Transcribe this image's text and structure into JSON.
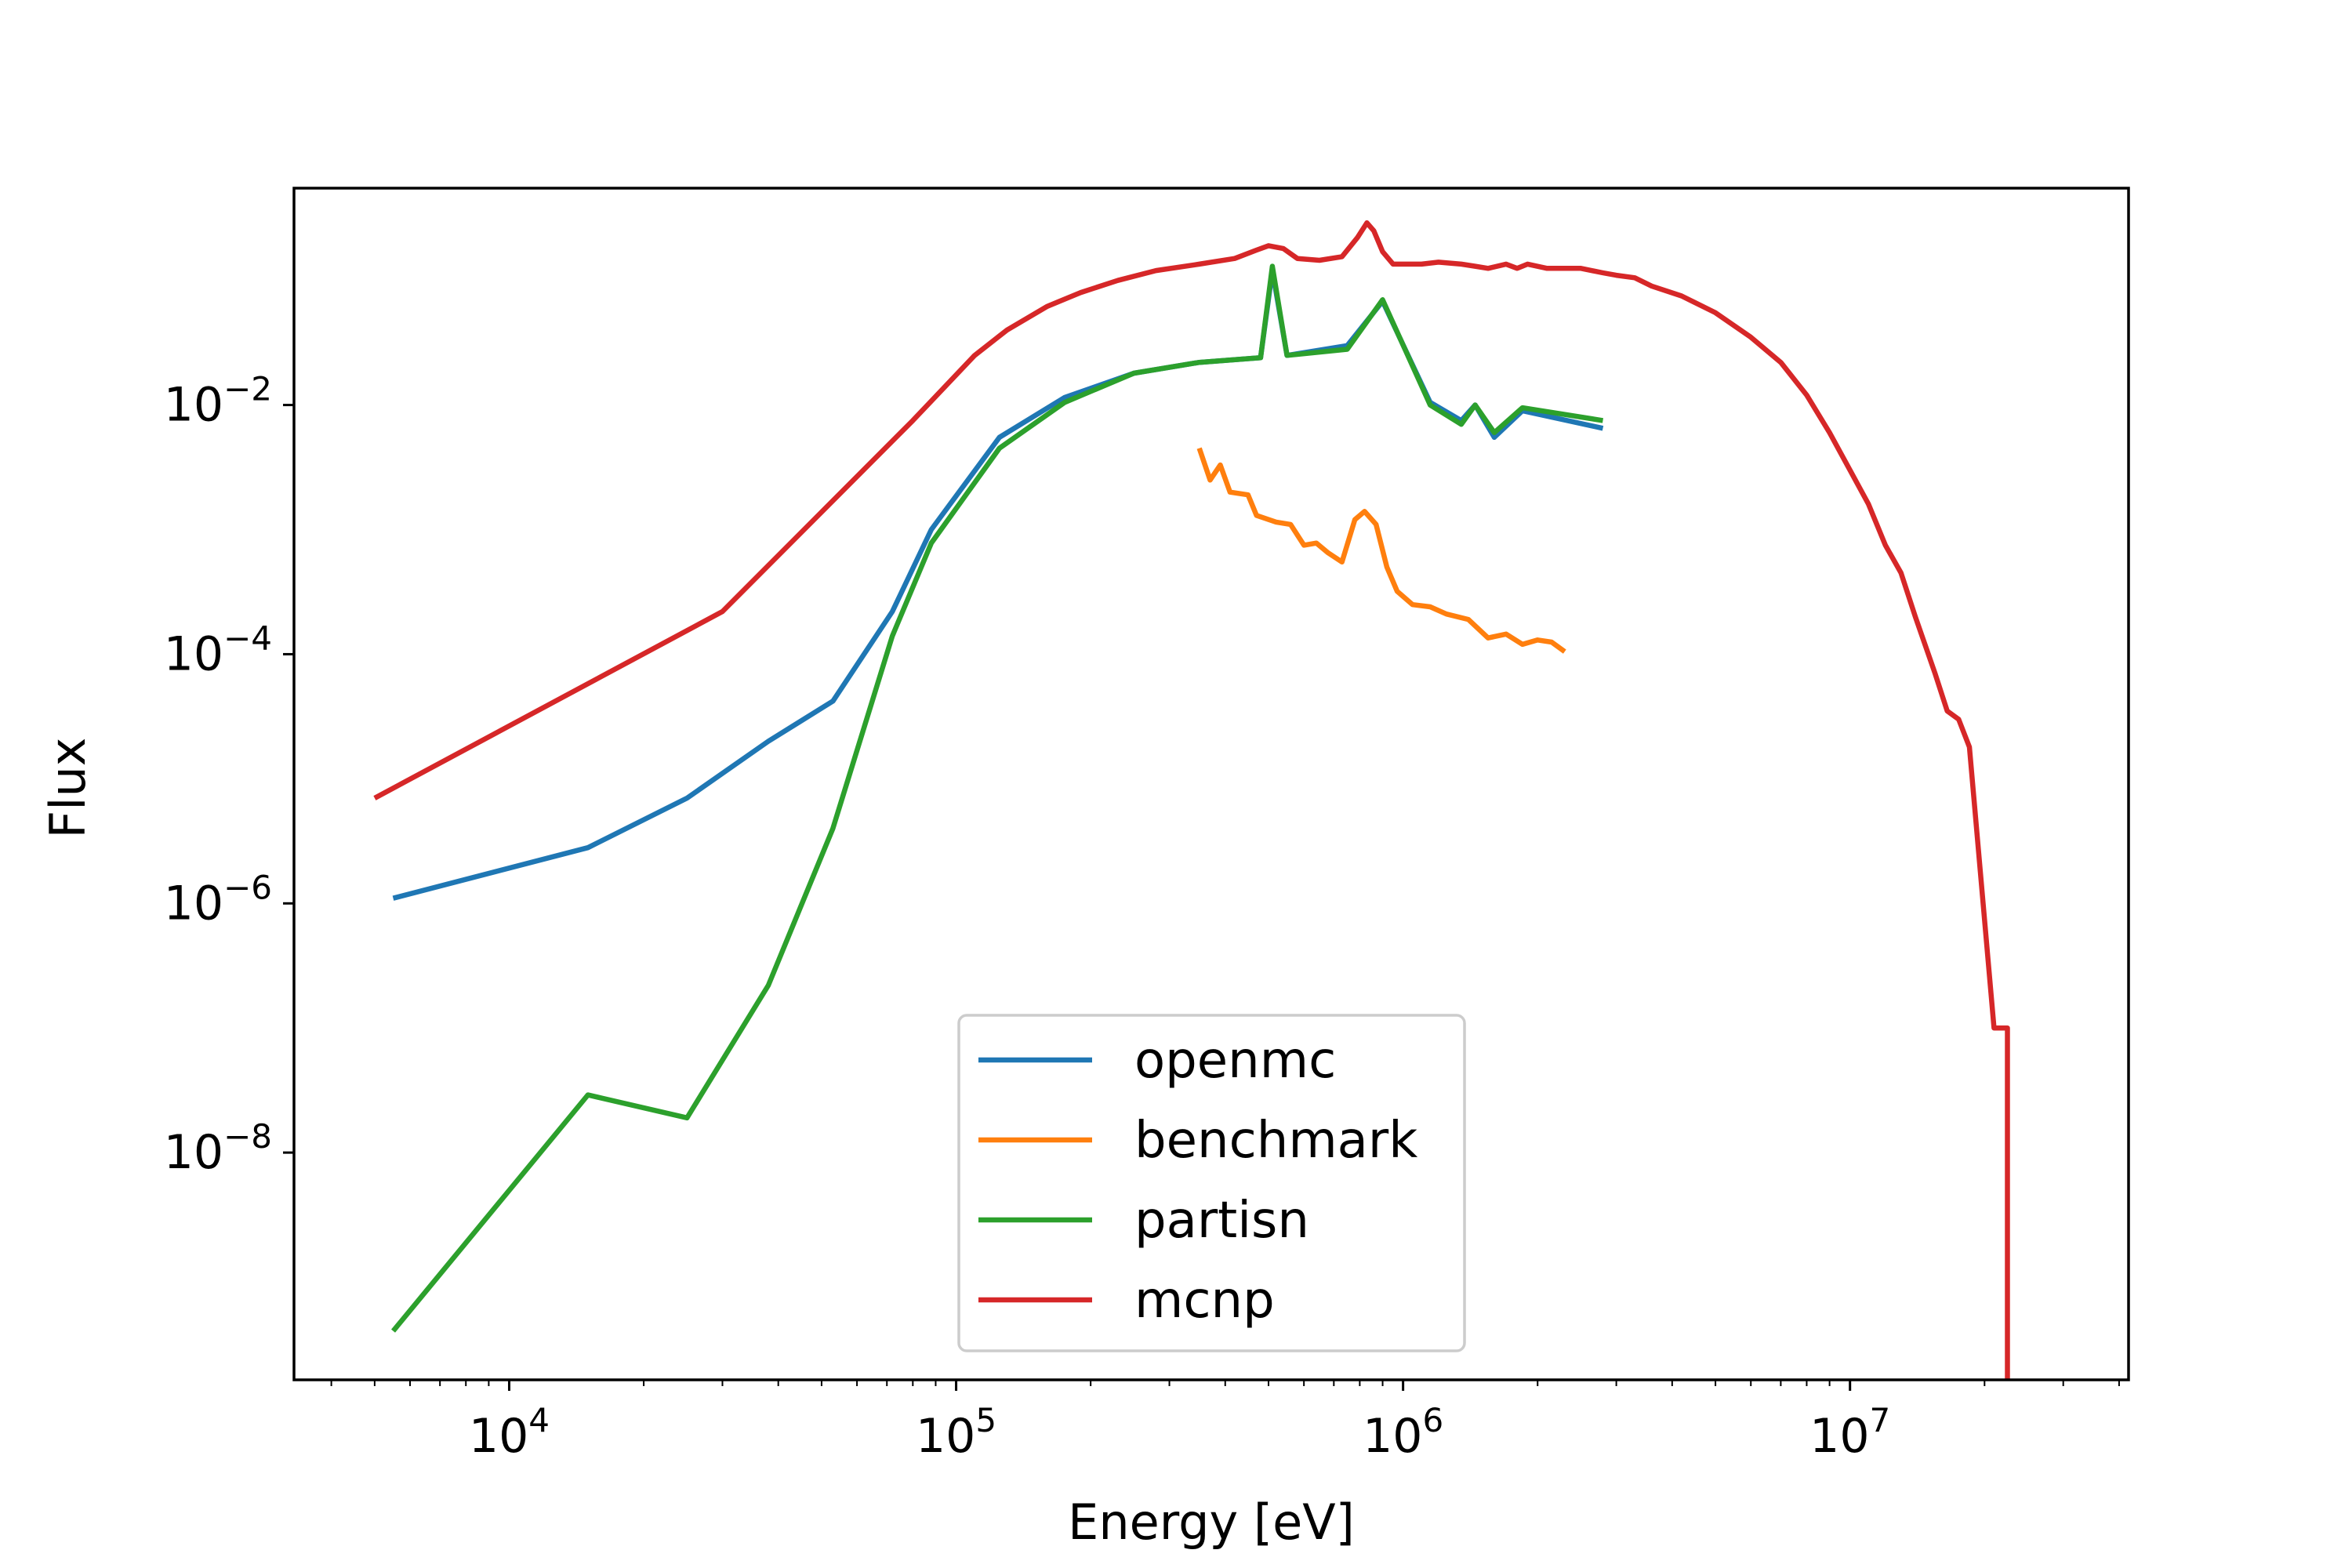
{
  "chart_data": {
    "type": "line",
    "xlabel": "Energy [eV]",
    "ylabel": "Flux",
    "xscale": "log",
    "yscale": "log",
    "xlim": [
      3300,
      42000000
    ],
    "ylim": [
      1.5e-10,
      0.55
    ],
    "grid": false,
    "legend_position": "lower center",
    "xticks": [
      {
        "base": "10",
        "exp": "4",
        "value": 10000
      },
      {
        "base": "10",
        "exp": "5",
        "value": 100000
      },
      {
        "base": "10",
        "exp": "6",
        "value": 1000000
      },
      {
        "base": "10",
        "exp": "7",
        "value": 10000000
      }
    ],
    "yticks": [
      {
        "base": "10",
        "exp": "−2",
        "value": 0.01
      },
      {
        "base": "10",
        "exp": "−4",
        "value": 0.0001
      },
      {
        "base": "10",
        "exp": "−6",
        "value": 1e-06
      },
      {
        "base": "10",
        "exp": "−8",
        "value": 1e-08
      }
    ],
    "series": [
      {
        "name": "openmc",
        "color": "#1f77b4",
        "points": [
          [
            5500,
            1.1e-06
          ],
          [
            15000,
            2.8e-06
          ],
          [
            25000,
            7e-06
          ],
          [
            38000,
            2e-05
          ],
          [
            53000,
            4.2e-05
          ],
          [
            72000,
            0.00022
          ],
          [
            88000,
            0.001
          ],
          [
            125000,
            0.0055
          ],
          [
            175000,
            0.0115
          ],
          [
            250000,
            0.018
          ],
          [
            350000,
            0.022
          ],
          [
            480000,
            0.024
          ],
          [
            510000,
            0.12
          ],
          [
            550000,
            0.025
          ],
          [
            750000,
            0.03
          ],
          [
            900000,
            0.068
          ],
          [
            1150000,
            0.0105
          ],
          [
            1350000,
            0.0075
          ],
          [
            1450000,
            0.01
          ],
          [
            1600000,
            0.0055
          ],
          [
            1850000,
            0.009
          ],
          [
            2800000,
            0.0065
          ]
        ]
      },
      {
        "name": "benchmark",
        "color": "#ff7f0e",
        "points": [
          [
            350000,
            0.0045
          ],
          [
            370000,
            0.0025
          ],
          [
            390000,
            0.0033
          ],
          [
            410000,
            0.002
          ],
          [
            450000,
            0.0019
          ],
          [
            470000,
            0.0013
          ],
          [
            520000,
            0.00115
          ],
          [
            560000,
            0.0011
          ],
          [
            600000,
            0.00075
          ],
          [
            640000,
            0.00078
          ],
          [
            680000,
            0.00065
          ],
          [
            730000,
            0.00055
          ],
          [
            780000,
            0.0012
          ],
          [
            820000,
            0.0014
          ],
          [
            870000,
            0.0011
          ],
          [
            920000,
            0.0005
          ],
          [
            970000,
            0.00032
          ],
          [
            1050000,
            0.00025
          ],
          [
            1150000,
            0.00024
          ],
          [
            1250000,
            0.00021
          ],
          [
            1400000,
            0.00019
          ],
          [
            1550000,
            0.000135
          ],
          [
            1700000,
            0.000145
          ],
          [
            1850000,
            0.00012
          ],
          [
            2000000,
            0.00013
          ],
          [
            2150000,
            0.000125
          ],
          [
            2300000,
            0.000105
          ]
        ]
      },
      {
        "name": "partisn",
        "color": "#2ca02c",
        "points": [
          [
            5500,
            3.7e-10
          ],
          [
            15000,
            2.9e-08
          ],
          [
            25000,
            1.9e-08
          ],
          [
            38000,
            2.2e-07
          ],
          [
            53000,
            4e-06
          ],
          [
            72000,
            0.00014
          ],
          [
            88000,
            0.00078
          ],
          [
            125000,
            0.0045
          ],
          [
            175000,
            0.0105
          ],
          [
            250000,
            0.018
          ],
          [
            350000,
            0.022
          ],
          [
            480000,
            0.024
          ],
          [
            510000,
            0.13
          ],
          [
            550000,
            0.025
          ],
          [
            750000,
            0.028
          ],
          [
            900000,
            0.07
          ],
          [
            1150000,
            0.01
          ],
          [
            1350000,
            0.007
          ],
          [
            1450000,
            0.01
          ],
          [
            1600000,
            0.006
          ],
          [
            1850000,
            0.0095
          ],
          [
            2800000,
            0.0075
          ]
        ]
      },
      {
        "name": "mcnp",
        "color": "#d62728",
        "points": [
          [
            5000,
            7e-06
          ],
          [
            30000,
            0.00022
          ],
          [
            80000,
            0.0075
          ],
          [
            110000,
            0.025
          ],
          [
            130000,
            0.04
          ],
          [
            160000,
            0.062
          ],
          [
            190000,
            0.08
          ],
          [
            230000,
            0.1
          ],
          [
            280000,
            0.12
          ],
          [
            350000,
            0.135
          ],
          [
            420000,
            0.15
          ],
          [
            470000,
            0.175
          ],
          [
            500000,
            0.19
          ],
          [
            540000,
            0.18
          ],
          [
            580000,
            0.15
          ],
          [
            650000,
            0.145
          ],
          [
            730000,
            0.155
          ],
          [
            790000,
            0.22
          ],
          [
            830000,
            0.29
          ],
          [
            860000,
            0.25
          ],
          [
            900000,
            0.17
          ],
          [
            950000,
            0.135
          ],
          [
            1100000,
            0.135
          ],
          [
            1200000,
            0.14
          ],
          [
            1350000,
            0.135
          ],
          [
            1450000,
            0.13
          ],
          [
            1550000,
            0.125
          ],
          [
            1700000,
            0.135
          ],
          [
            1800000,
            0.125
          ],
          [
            1900000,
            0.135
          ],
          [
            2100000,
            0.125
          ],
          [
            2500000,
            0.125
          ],
          [
            2800000,
            0.115
          ],
          [
            3000000,
            0.11
          ],
          [
            3300000,
            0.105
          ],
          [
            3600000,
            0.09
          ],
          [
            4200000,
            0.075
          ],
          [
            5000000,
            0.055
          ],
          [
            6000000,
            0.035
          ],
          [
            7000000,
            0.022
          ],
          [
            8000000,
            0.012
          ],
          [
            9000000,
            0.006
          ],
          [
            10000000,
            0.003
          ],
          [
            11000000,
            0.0016
          ],
          [
            12000000,
            0.00075
          ],
          [
            13000000,
            0.00045
          ],
          [
            14000000,
            0.0002
          ],
          [
            15500000,
            7e-05
          ],
          [
            16500000,
            3.5e-05
          ],
          [
            17500000,
            3e-05
          ],
          [
            18500000,
            1.8e-05
          ],
          [
            21000000,
            1e-07
          ],
          [
            22500000,
            1e-07
          ],
          [
            22500000,
            1.5e-10
          ]
        ]
      }
    ]
  }
}
